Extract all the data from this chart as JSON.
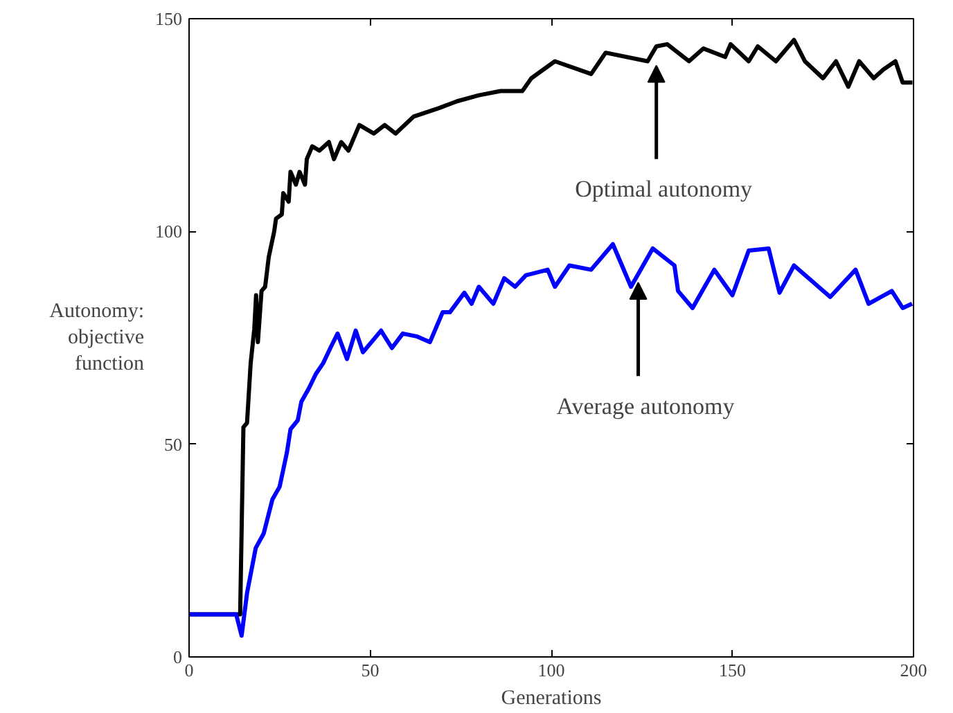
{
  "chart_data": {
    "type": "line",
    "xlabel": "Generations",
    "ylabel": "Autonomy: objective function",
    "xlim": [
      0,
      200
    ],
    "ylim": [
      0,
      150
    ],
    "xticks": [
      0,
      50,
      100,
      150,
      200
    ],
    "yticks": [
      0,
      50,
      100,
      150
    ],
    "grid": false,
    "marker": "none",
    "line_style": "solid",
    "series": [
      {
        "color": "#000000",
        "x": [
          0,
          14.1,
          15,
          16,
          17,
          18,
          18.5,
          19,
          20,
          21,
          22,
          23.5,
          24,
          25.6,
          26,
          27.5,
          28,
          29.5,
          30.5,
          32,
          32.5,
          34,
          36,
          38.6,
          40,
          42,
          44,
          47,
          51,
          54,
          57,
          62,
          69,
          74,
          80,
          86,
          92,
          94.5,
          101,
          111,
          115,
          126.6,
          129,
          132,
          138,
          142,
          148,
          149.5,
          154.5,
          157,
          162,
          167,
          170,
          175,
          178.6,
          182,
          185,
          189,
          191.6,
          195,
          197,
          199.7
        ],
        "values": [
          10,
          10,
          54,
          55,
          69,
          77,
          85,
          74,
          86,
          87,
          94,
          100,
          103,
          104,
          109,
          107,
          114,
          111,
          114,
          111,
          117,
          120,
          119,
          121,
          117,
          121,
          119,
          125,
          123,
          125,
          123,
          127,
          129,
          130.6,
          132,
          133,
          133,
          136,
          140,
          137,
          142,
          140,
          143.5,
          144,
          140,
          143,
          141,
          144,
          140,
          143.5,
          140,
          145,
          140,
          136,
          140,
          134,
          140,
          136,
          138,
          140,
          135,
          135
        ]
      },
      {
        "color": "#0000ff",
        "x": [
          0,
          13,
          14.5,
          16,
          18.4,
          20.6,
          23,
          25,
          27,
          28,
          30,
          31,
          33,
          35,
          37,
          39,
          41,
          43.6,
          46,
          48,
          53,
          56,
          59,
          63,
          66.5,
          70,
          72,
          76,
          78,
          80,
          84,
          87,
          90,
          93,
          99,
          101,
          105,
          111,
          117,
          122,
          128,
          134,
          135,
          139,
          145,
          150,
          154.5,
          160,
          163,
          167,
          177,
          184,
          187.6,
          194,
          197,
          199.6
        ],
        "values": [
          10,
          10,
          5,
          15,
          25.6,
          29,
          37,
          40,
          48,
          53.5,
          55.6,
          60,
          63,
          66.5,
          69,
          72.6,
          76,
          70,
          76.7,
          71.6,
          76.7,
          72.6,
          76,
          75.3,
          74,
          81,
          81,
          85.6,
          83,
          87,
          83,
          89,
          87,
          89.7,
          91,
          87,
          92,
          91,
          97,
          87,
          96,
          92,
          86,
          82,
          91,
          85,
          95.5,
          96,
          85.6,
          92,
          84.6,
          91,
          83,
          86,
          82,
          83
        ]
      }
    ],
    "annotations": [
      {
        "text": "Optimal autonomy",
        "x": 129,
        "y": 140
      },
      {
        "text": "Average autonomy",
        "x": 124,
        "y": 89
      }
    ]
  }
}
